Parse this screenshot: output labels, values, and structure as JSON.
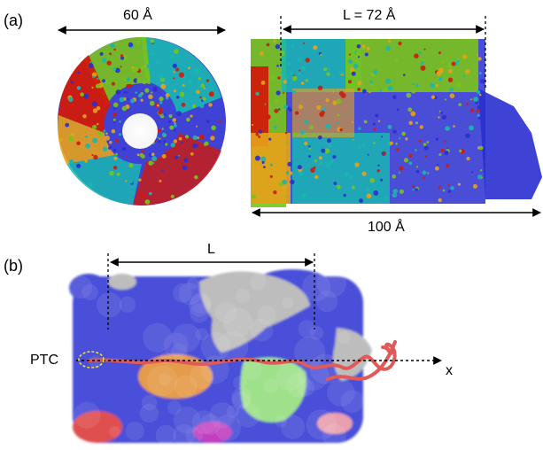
{
  "panel_a": {
    "tag": "(a)",
    "diameter_label": "60 Å",
    "tunnel_length_label": "L = 72 Å",
    "total_length_label": "100 Å"
  },
  "panel_b": {
    "tag": "(b)",
    "length_label": "L",
    "ptc_label": "PTC",
    "axis_label": "x"
  },
  "colors": {
    "blue": "#2a2fd0",
    "red": "#d11a0a",
    "orange": "#e7a21a",
    "green": "#7ac41a",
    "cyan": "#19b7b1",
    "surface_blue": "#4a4fd8",
    "surface_gray": "#bdbdbd",
    "surface_orange": "#e59b4a",
    "surface_green": "#9fe08a",
    "surface_red": "#e05050",
    "chain": "#e05a5a",
    "ptc_marker": "#e8e030"
  }
}
